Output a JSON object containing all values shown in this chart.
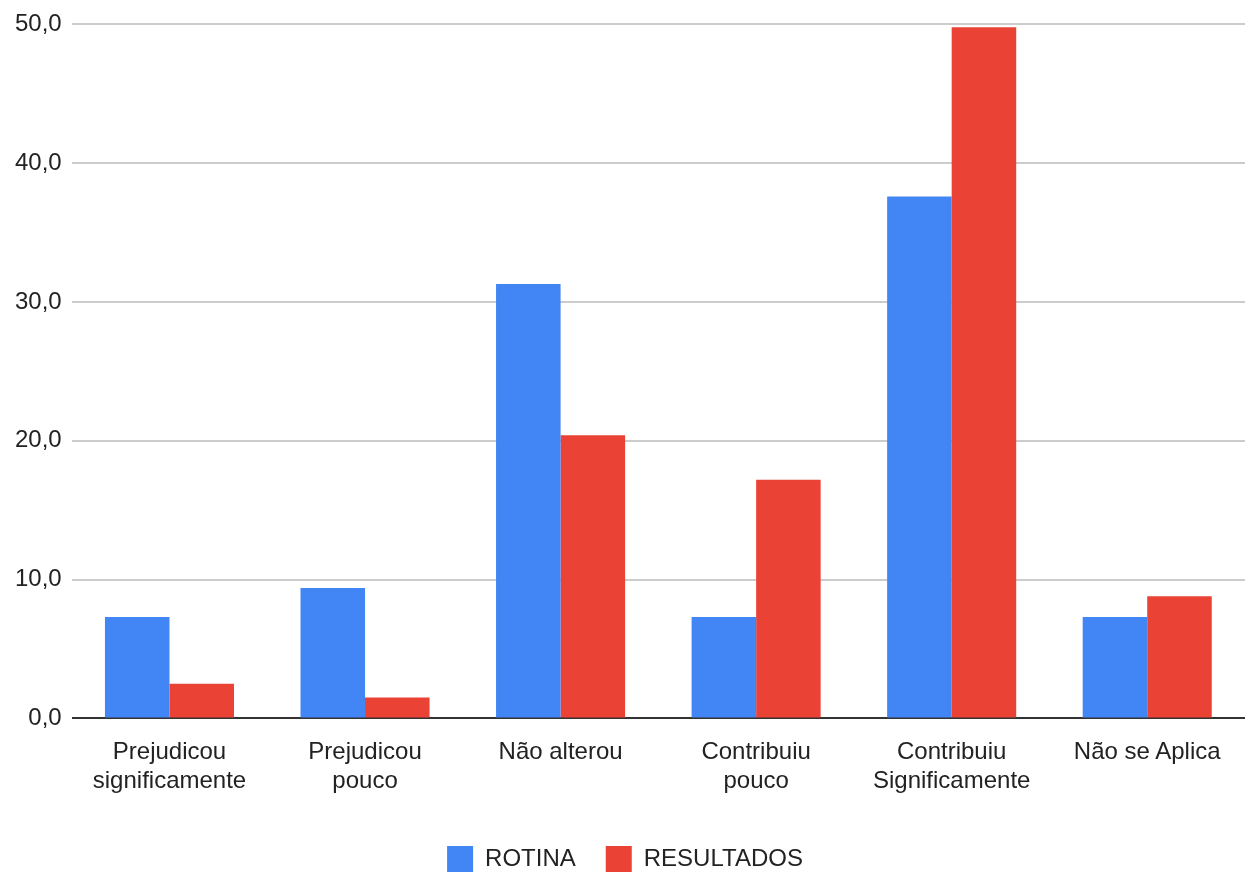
{
  "chart_data": {
    "type": "bar",
    "categories": [
      "Prejudicou significamente",
      "Prejudicou pouco",
      "Não alterou",
      "Contribuiu pouco",
      "Contribuiu Significamente",
      "Não se Aplica"
    ],
    "series": [
      {
        "name": "ROTINA",
        "color": "#4285f4",
        "values": [
          7.3,
          9.4,
          31.3,
          7.3,
          37.6,
          7.3
        ]
      },
      {
        "name": "RESULTADOS",
        "color": "#ea4335",
        "values": [
          2.5,
          1.5,
          20.4,
          17.2,
          49.8,
          8.8
        ]
      }
    ],
    "ylim": [
      0,
      50
    ],
    "yticks": [
      {
        "value": 0,
        "label": "0,0"
      },
      {
        "value": 10,
        "label": "10,0"
      },
      {
        "value": 20,
        "label": "20,0"
      },
      {
        "value": 30,
        "label": "30,0"
      },
      {
        "value": 40,
        "label": "40,0"
      },
      {
        "value": 50,
        "label": "50,0"
      }
    ],
    "grid": "y",
    "legend": "bottom"
  }
}
